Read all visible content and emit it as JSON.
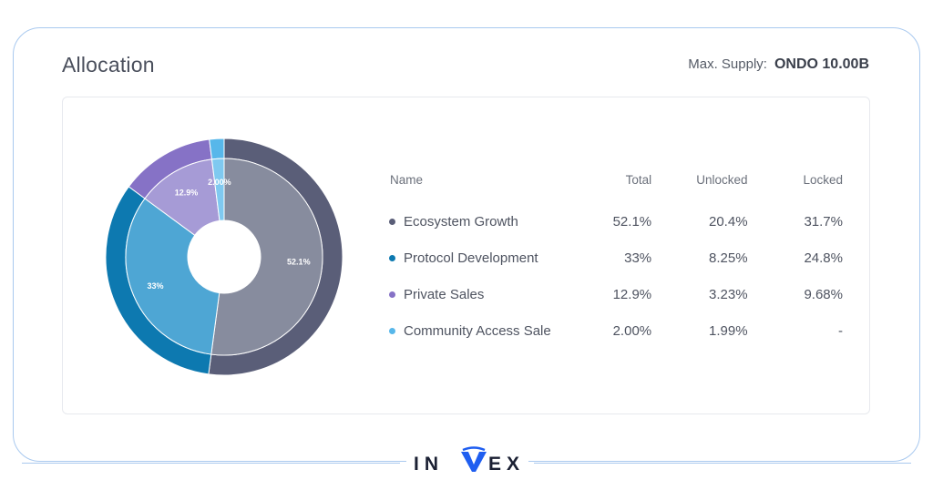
{
  "header": {
    "title": "Allocation",
    "supply_label": "Max. Supply:",
    "supply_value": "ONDO 10.00B"
  },
  "table": {
    "headers": [
      "Name",
      "Total",
      "Unlocked",
      "Locked"
    ],
    "rows": [
      {
        "name": "Ecosystem Growth",
        "total": "52.1%",
        "unlocked": "20.4%",
        "locked": "31.7%",
        "color": "#5a5e78"
      },
      {
        "name": "Protocol Development",
        "total": "33%",
        "unlocked": "8.25%",
        "locked": "24.8%",
        "color": "#0d79b0"
      },
      {
        "name": "Private Sales",
        "total": "12.9%",
        "unlocked": "3.23%",
        "locked": "9.68%",
        "color": "#8672c6"
      },
      {
        "name": "Community Access Sale",
        "total": "2.00%",
        "unlocked": "1.99%",
        "locked": "-",
        "color": "#57b7ea"
      }
    ]
  },
  "chart_data": {
    "type": "pie",
    "variant": "donut",
    "categories": [
      "Ecosystem Growth",
      "Protocol Development",
      "Private Sales",
      "Community Access Sale"
    ],
    "values": [
      52.1,
      33,
      12.9,
      2.0
    ],
    "labels": [
      "52.1%",
      "33%",
      "12.9%",
      "2.00%"
    ],
    "outer_colors": [
      "#5a5e78",
      "#0d79b0",
      "#8672c6",
      "#57b7ea"
    ],
    "inner_colors": [
      "#878c9e",
      "#4ea6d4",
      "#a69bd6",
      "#7fc9f0"
    ],
    "start_angle_deg": 0,
    "direction": "clockwise"
  },
  "footer": {
    "logo_left": "IN",
    "logo_right": "EX",
    "logo_v_color": "#1f5ef0"
  }
}
